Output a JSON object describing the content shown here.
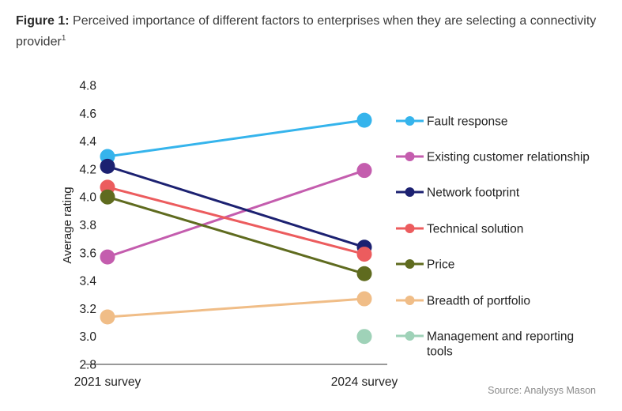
{
  "figure": {
    "label": "Figure 1:",
    "title": "Perceived importance of different factors to enterprises when they are selecting a connectivity provider",
    "footnote": "1"
  },
  "source": "Source: Analysys Mason",
  "chart_data": {
    "type": "line",
    "categories": [
      "2021 survey",
      "2024 survey"
    ],
    "ylabel": "Average rating",
    "ylim": [
      2.8,
      4.8
    ],
    "yticks": [
      "4.8",
      "4.6",
      "4.4",
      "4.2",
      "4.0",
      "3.8",
      "3.6",
      "3.4",
      "3.2",
      "3.0",
      "2.8"
    ],
    "grid": false,
    "legend_position": "right",
    "series": [
      {
        "name": "Fault response",
        "color": "#35b4ec",
        "values": [
          4.29,
          4.55
        ]
      },
      {
        "name": "Existing customer relationship",
        "color": "#c45dae",
        "values": [
          3.57,
          4.19
        ]
      },
      {
        "name": "Network footprint",
        "color": "#1c2171",
        "values": [
          4.22,
          3.64
        ]
      },
      {
        "name": "Technical solution",
        "color": "#ec5c5e",
        "values": [
          4.07,
          3.59
        ]
      },
      {
        "name": "Price",
        "color": "#5f6b1f",
        "values": [
          4.0,
          3.45
        ]
      },
      {
        "name": "Breadth of portfolio",
        "color": "#f0bd87",
        "values": [
          3.14,
          3.27
        ]
      },
      {
        "name": "Management and reporting tools",
        "color": "#9fd2b8",
        "values": [
          null,
          3.0
        ]
      }
    ]
  }
}
